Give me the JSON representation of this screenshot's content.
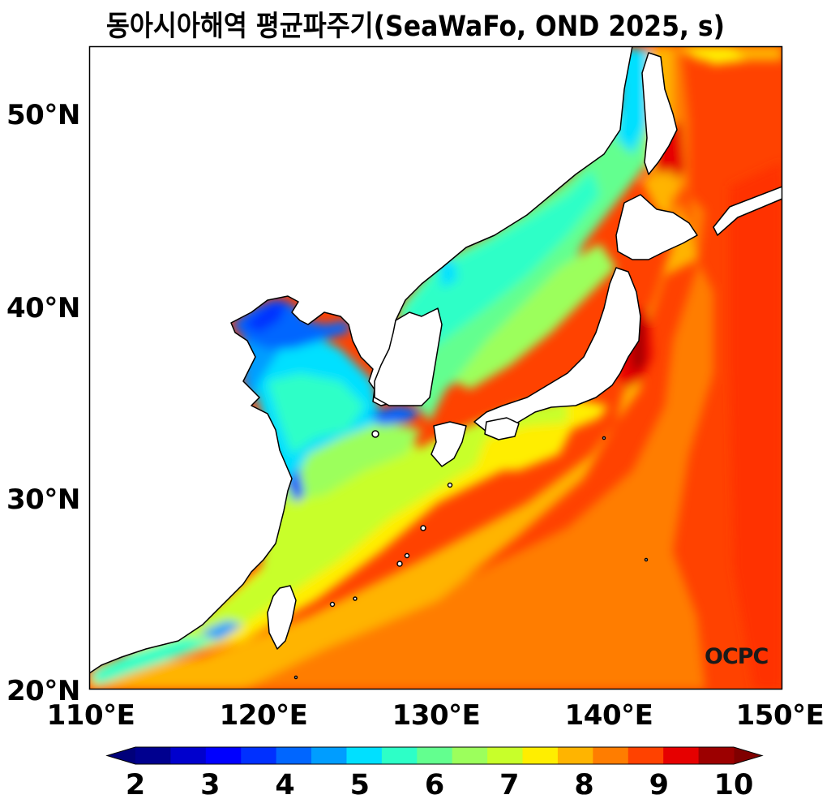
{
  "title": "동아시아해역 평균파주기(SeaWaFo, OND 2025, s)",
  "map": {
    "type": "filled-contour",
    "variable": "mean wave period",
    "unit": "s",
    "extent": {
      "lon": [
        110,
        150
      ],
      "lat": [
        20,
        53.5
      ]
    },
    "lat_ticks": [
      "20°N",
      "30°N",
      "40°N",
      "50°N"
    ],
    "lon_ticks": [
      "110°E",
      "120°E",
      "130°E",
      "140°E",
      "150°E"
    ],
    "logo_text": "OCPC"
  },
  "colorbar": {
    "min": 2,
    "max": 10,
    "step": 0.5,
    "extend": "both",
    "tick_labels": [
      "2",
      "3",
      "4",
      "5",
      "6",
      "7",
      "8",
      "9",
      "10"
    ],
    "colors": [
      "#00008f",
      "#0000cd",
      "#0000ff",
      "#0030ff",
      "#0066ff",
      "#009dff",
      "#00e0ff",
      "#2dffc7",
      "#63ff8f",
      "#9cff5c",
      "#c8ff2a",
      "#ffee00",
      "#ffb400",
      "#ff7d00",
      "#ff4200",
      "#e60000",
      "#9c0000"
    ],
    "under_color": "#00007a",
    "over_color": "#800000"
  }
}
